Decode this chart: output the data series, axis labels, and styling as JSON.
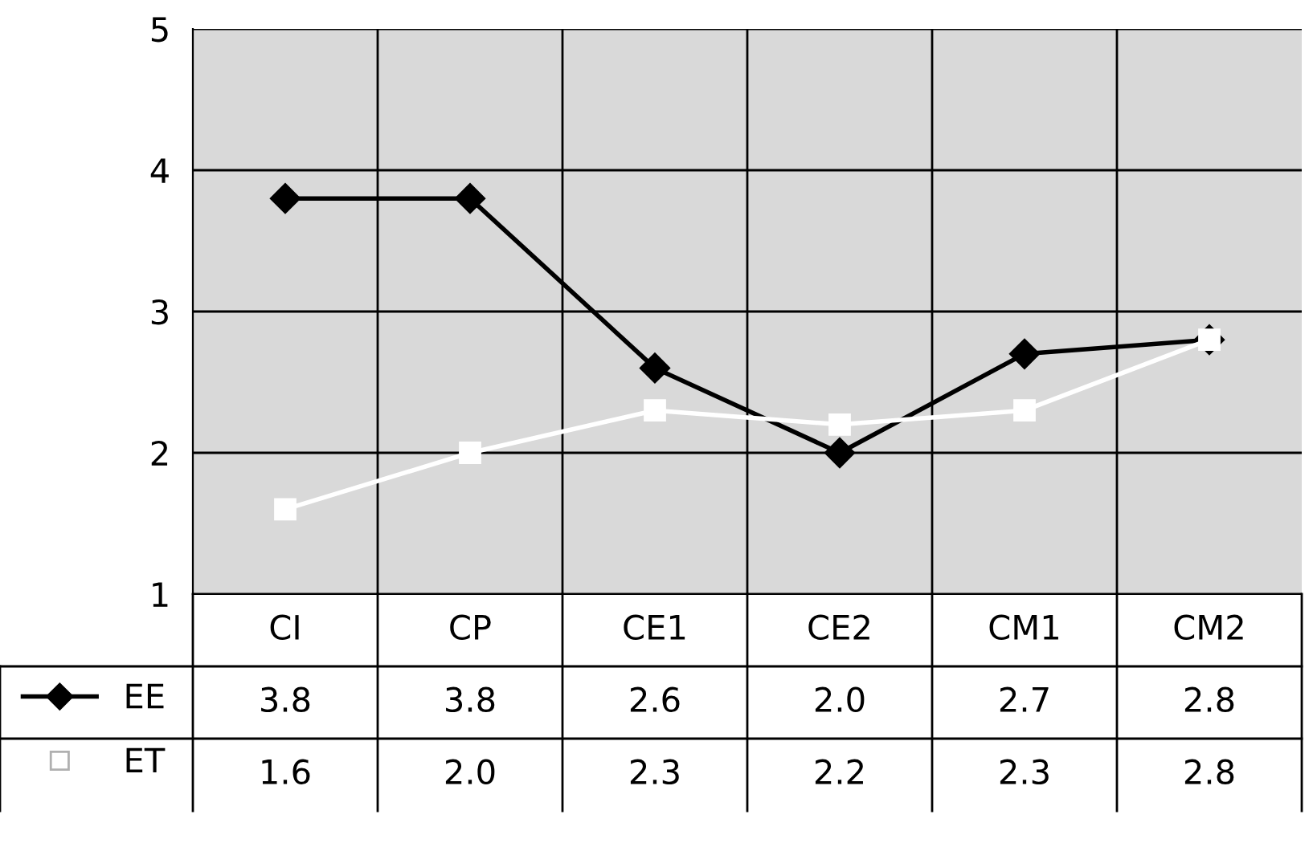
{
  "chart_data": {
    "type": "line",
    "categories": [
      "CI",
      "CP",
      "CE1",
      "CE2",
      "CM1",
      "CM2"
    ],
    "series": [
      {
        "name": "EE",
        "color": "#000000",
        "marker": "diamond",
        "values": [
          3.8,
          3.8,
          2.6,
          2.0,
          2.7,
          2.8
        ],
        "value_labels": [
          "3.8",
          "3.8",
          "2.6",
          "2.0",
          "2.7",
          "2.8"
        ]
      },
      {
        "name": "ET",
        "color": "#ffffff",
        "marker": "square",
        "values": [
          1.6,
          2.0,
          2.3,
          2.2,
          2.3,
          2.8
        ],
        "value_labels": [
          "1.6",
          "2.0",
          "2.3",
          "2.2",
          "2.3",
          "2.8"
        ]
      }
    ],
    "ylim": [
      1,
      5
    ],
    "yticks": [
      1,
      2,
      3,
      4,
      5
    ],
    "grid": true,
    "legend": "bottom",
    "line_style": "solid"
  }
}
